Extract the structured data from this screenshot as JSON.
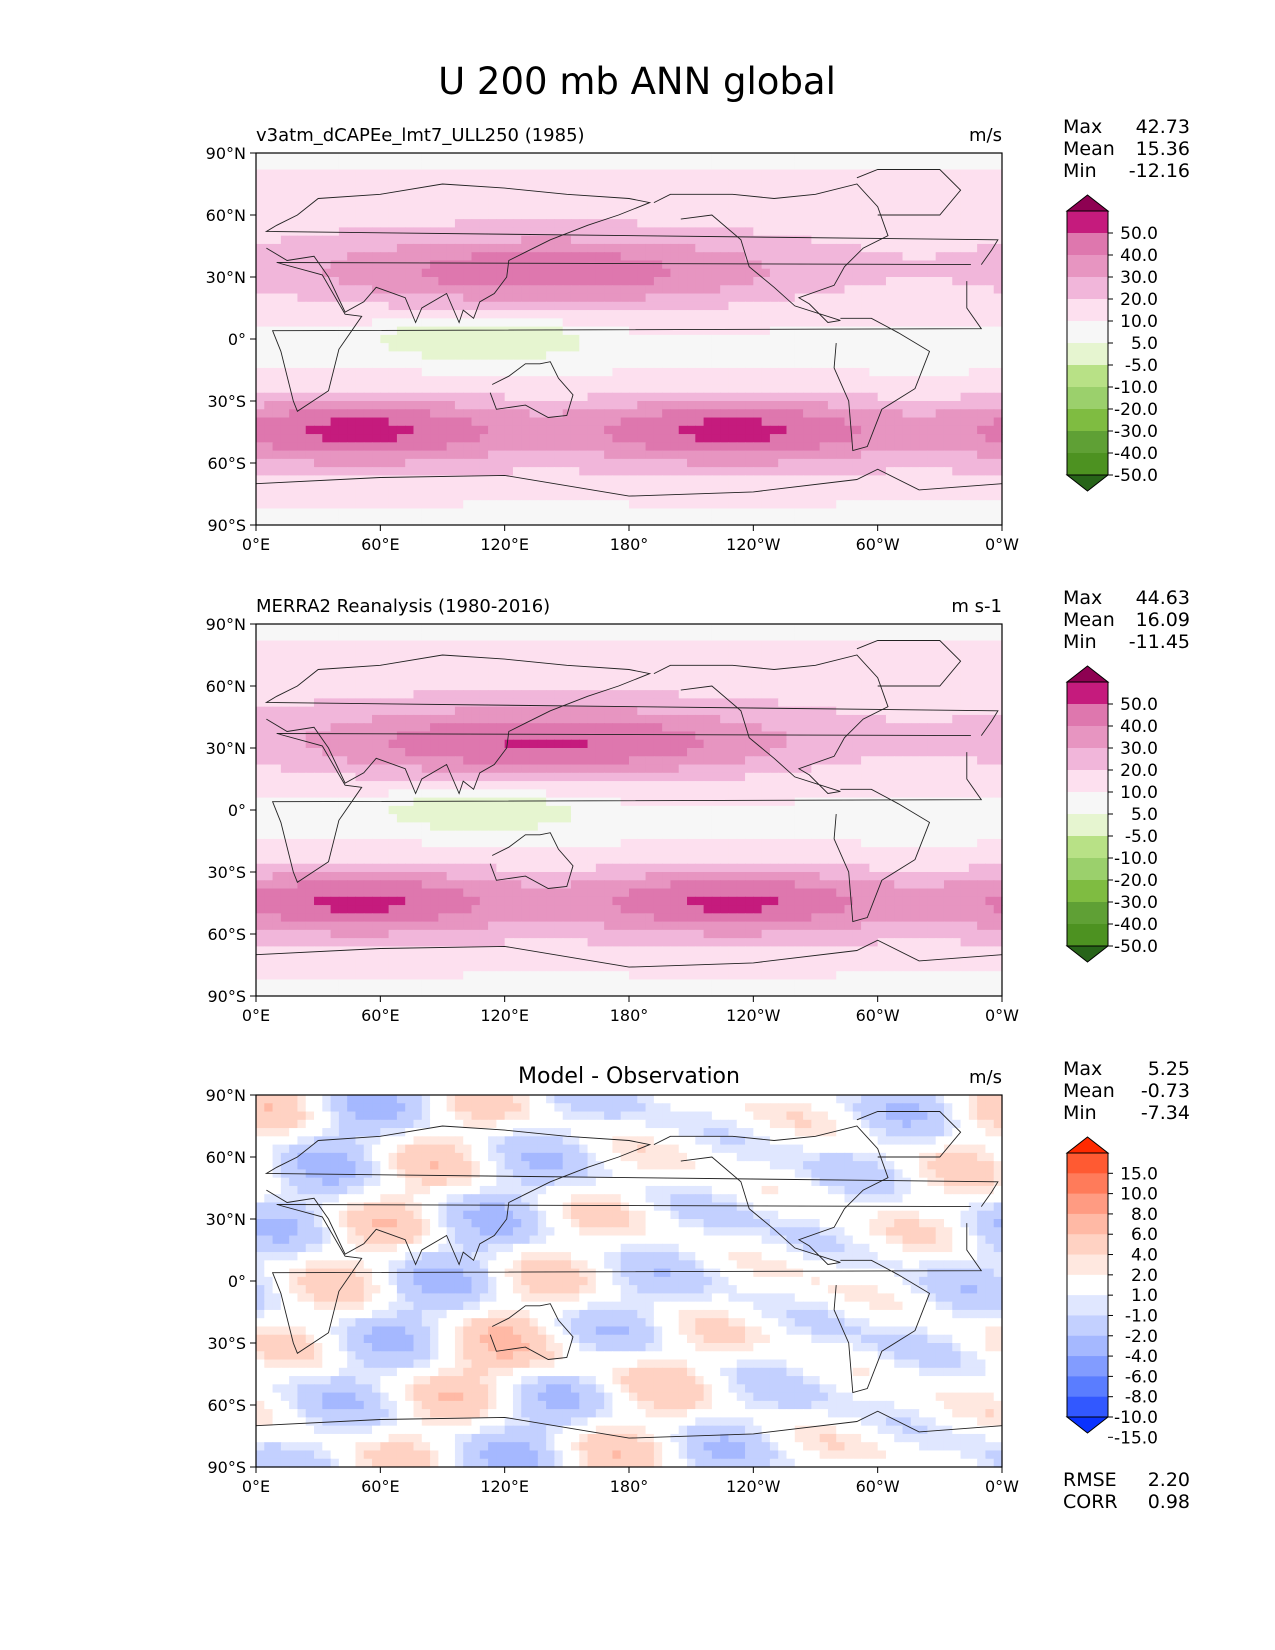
{
  "figure": {
    "title": "U 200 mb ANN global"
  },
  "chart_data": [
    {
      "type": "heatmap",
      "title": "v3atm_dCAPEe_lmt7_ULL250 (1985)",
      "units": "m/s",
      "x_ticks": [
        "0°E",
        "60°E",
        "120°E",
        "180°",
        "120°W",
        "60°W",
        "0°W"
      ],
      "y_ticks": [
        "90°N",
        "60°N",
        "30°N",
        "0°",
        "30°S",
        "60°S",
        "90°S"
      ],
      "xlim": [
        0,
        360
      ],
      "ylim": [
        -90,
        90
      ],
      "stats": [
        {
          "label": "Max",
          "value": "42.73"
        },
        {
          "label": "Mean",
          "value": "15.36"
        },
        {
          "label": "Min",
          "value": "-12.16"
        }
      ],
      "colorbar": {
        "labels": [
          "50.0",
          "40.0",
          "30.0",
          "20.0",
          "10.0",
          "5.0",
          "-5.0",
          "-10.0",
          "-20.0",
          "-30.0",
          "-40.0",
          "-50.0"
        ],
        "colors": [
          "#8e0152",
          "#c51b7d",
          "#de77ae",
          "#e795c1",
          "#f1b6da",
          "#fde0ef",
          "#f7f7f7",
          "#e6f5d0",
          "#b8e186",
          "#9bd06c",
          "#7fbc41",
          "#5fa035",
          "#4d9221",
          "#276419"
        ]
      },
      "field": {
        "kind": "zonal_wind",
        "jet_nh": 38,
        "jet_sh": 45,
        "equator_min": -12
      }
    },
    {
      "type": "heatmap",
      "title": "MERRA2 Reanalysis (1980-2016)",
      "units": "m s-1",
      "x_ticks": [
        "0°E",
        "60°E",
        "120°E",
        "180°",
        "120°W",
        "60°W",
        "0°W"
      ],
      "y_ticks": [
        "90°N",
        "60°N",
        "30°N",
        "0°",
        "30°S",
        "60°S",
        "90°S"
      ],
      "xlim": [
        0,
        360
      ],
      "ylim": [
        -90,
        90
      ],
      "stats": [
        {
          "label": "Max",
          "value": "44.63"
        },
        {
          "label": "Mean",
          "value": "16.09"
        },
        {
          "label": "Min",
          "value": "-11.45"
        }
      ],
      "colorbar": {
        "labels": [
          "50.0",
          "40.0",
          "30.0",
          "20.0",
          "10.0",
          "5.0",
          "-5.0",
          "-10.0",
          "-20.0",
          "-30.0",
          "-40.0",
          "-50.0"
        ],
        "colors": [
          "#8e0152",
          "#c51b7d",
          "#de77ae",
          "#e795c1",
          "#f1b6da",
          "#fde0ef",
          "#f7f7f7",
          "#e6f5d0",
          "#b8e186",
          "#9bd06c",
          "#7fbc41",
          "#5fa035",
          "#4d9221",
          "#276419"
        ]
      },
      "field": {
        "kind": "zonal_wind",
        "jet_nh": 42,
        "jet_sh": 44,
        "equator_min": -11
      }
    },
    {
      "type": "heatmap",
      "title": "Model - Observation",
      "units": "m/s",
      "x_ticks": [
        "0°E",
        "60°E",
        "120°E",
        "180°",
        "120°W",
        "60°W",
        "0°W"
      ],
      "y_ticks": [
        "90°N",
        "60°N",
        "30°N",
        "0°",
        "30°S",
        "60°S",
        "90°S"
      ],
      "xlim": [
        0,
        360
      ],
      "ylim": [
        -90,
        90
      ],
      "stats": [
        {
          "label": "Max",
          "value": "5.25"
        },
        {
          "label": "Mean",
          "value": "-0.73"
        },
        {
          "label": "Min",
          "value": "-7.34"
        }
      ],
      "extra_stats": [
        {
          "label": "RMSE",
          "value": "2.20"
        },
        {
          "label": "CORR",
          "value": "0.98"
        }
      ],
      "colorbar": {
        "labels": [
          "15.0",
          "10.0",
          "8.0",
          "6.0",
          "4.0",
          "2.0",
          "1.0",
          "-1.0",
          "-2.0",
          "-4.0",
          "-6.0",
          "-8.0",
          "-10.0",
          "-15.0"
        ],
        "colors": [
          "#ff2a00",
          "#ff5a32",
          "#ff7b5a",
          "#ff9b82",
          "#ffb9a5",
          "#ffd2c3",
          "#ffe8e0",
          "#ffffff",
          "#e0e7ff",
          "#c3d0ff",
          "#a5b8ff",
          "#829cff",
          "#5a7dff",
          "#3258ff",
          "#0a32ff"
        ]
      },
      "field": {
        "kind": "difference"
      }
    }
  ]
}
